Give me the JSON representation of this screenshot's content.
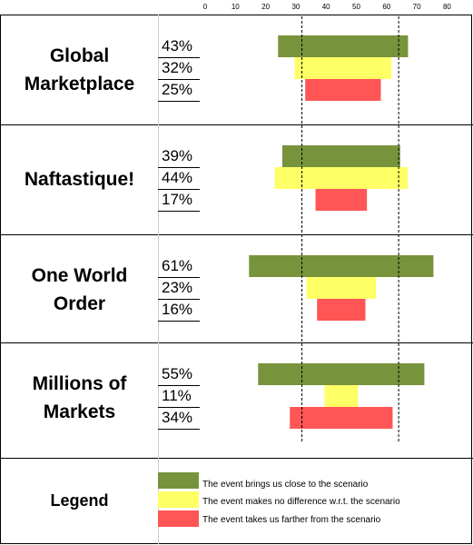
{
  "chart_data": {
    "type": "bar",
    "xlim": [
      0,
      90
    ],
    "x_ticks": [
      0,
      10,
      20,
      30,
      40,
      50,
      60,
      70,
      80,
      90
    ],
    "reference_lines": [
      32,
      64
    ],
    "scenarios": [
      {
        "name": "Global\nMarketplace",
        "values": [
          {
            "label": "43%",
            "value": 43,
            "series": "close"
          },
          {
            "label": "32%",
            "value": 32,
            "series": "same"
          },
          {
            "label": "25%",
            "value": 25,
            "series": "far"
          }
        ]
      },
      {
        "name": "Naftastique!",
        "values": [
          {
            "label": "39%",
            "value": 39,
            "series": "close"
          },
          {
            "label": "44%",
            "value": 44,
            "series": "same"
          },
          {
            "label": "17%",
            "value": 17,
            "series": "far"
          }
        ]
      },
      {
        "name": "One World\nOrder",
        "values": [
          {
            "label": "61%",
            "value": 61,
            "series": "close"
          },
          {
            "label": "23%",
            "value": 23,
            "series": "same"
          },
          {
            "label": "16%",
            "value": 16,
            "series": "far"
          }
        ]
      },
      {
        "name": "Millions of\nMarkets",
        "values": [
          {
            "label": "55%",
            "value": 55,
            "series": "close"
          },
          {
            "label": "11%",
            "value": 11,
            "series": "same"
          },
          {
            "label": "34%",
            "value": 34,
            "series": "far"
          }
        ]
      }
    ],
    "legend": {
      "title": "Legend",
      "entries": [
        {
          "key": "close",
          "label": "The event brings us close to the scenario",
          "color": "#77933c"
        },
        {
          "key": "same",
          "label": "The event makes no difference w.r.t. the scenario",
          "color": "#ffff66"
        },
        {
          "key": "far",
          "label": "The event takes us farther from the scenario",
          "color": "#ff5555"
        }
      ]
    }
  }
}
